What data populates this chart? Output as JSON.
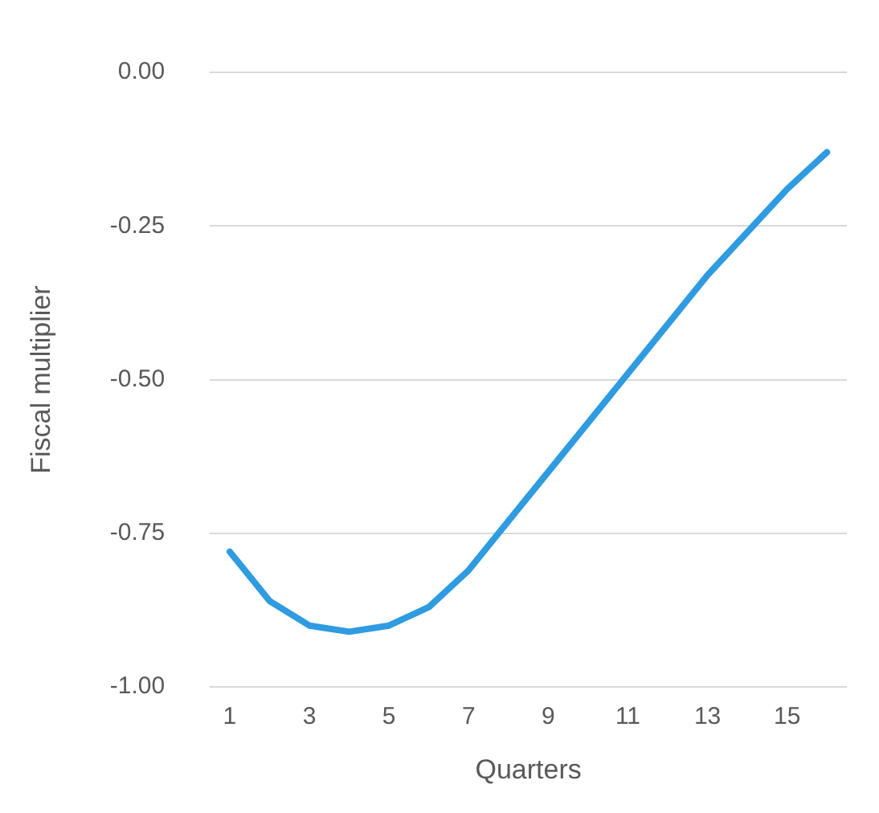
{
  "chart_data": {
    "type": "line",
    "xlabel": "Quarters",
    "ylabel": "Fiscal multiplier",
    "x": [
      1,
      2,
      3,
      4,
      5,
      6,
      7,
      8,
      9,
      10,
      11,
      12,
      13,
      14,
      15,
      16
    ],
    "xlim": [
      0.5,
      16.5
    ],
    "xticks": [
      1,
      3,
      5,
      7,
      9,
      11,
      13,
      15
    ],
    "series": [
      {
        "color": "#2f9be0",
        "values": [
          -0.78,
          -0.86,
          -0.9,
          -0.91,
          -0.9,
          -0.87,
          -0.81,
          -0.73,
          -0.65,
          -0.57,
          -0.49,
          -0.41,
          -0.33,
          -0.26,
          -0.19,
          -0.13
        ]
      }
    ],
    "ylim": [
      -1,
      0
    ],
    "yticks": [
      {
        "value": -1,
        "label": "-1.00"
      },
      {
        "value": -0.75,
        "label": "-0.75"
      },
      {
        "value": -0.5,
        "label": "-0.50"
      },
      {
        "value": -0.25,
        "label": "-0.25"
      },
      {
        "value": 0,
        "label": "0.00"
      }
    ],
    "grid": "y",
    "legend": false,
    "marker": "none",
    "line_style": "solid"
  }
}
